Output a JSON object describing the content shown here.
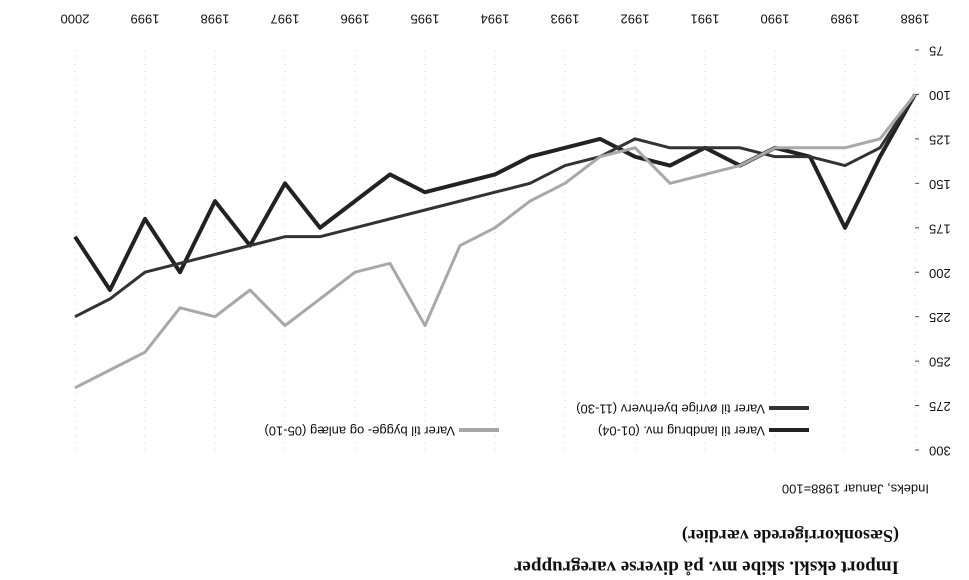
{
  "chart_data": {
    "type": "line",
    "title": "Import ekskl. skibe mv. på diverse varegrupper",
    "subtitle": "(Sæsonkorrigerede værdier)",
    "y_label": "Indeks, Januar 1988=100",
    "x": [
      1988,
      1988.5,
      1989,
      1989.5,
      1990,
      1990.5,
      1991,
      1991.5,
      1992,
      1992.5,
      1993,
      1993.5,
      1994,
      1994.5,
      1995,
      1995.5,
      1996,
      1996.5,
      1997,
      1997.5,
      1998,
      1998.5,
      1999,
      1999.5,
      2000
    ],
    "series": [
      {
        "name": "Varer til landbrug mv. (01-04)",
        "color": "#222222",
        "values": [
          100,
          135,
          175,
          135,
          130,
          140,
          130,
          140,
          135,
          125,
          130,
          135,
          145,
          150,
          155,
          145,
          160,
          175,
          150,
          185,
          160,
          200,
          170,
          210,
          180
        ]
      },
      {
        "name": "Varer til øvrige byerhverv (11-30)",
        "color": "#333333",
        "values": [
          100,
          130,
          140,
          135,
          135,
          130,
          130,
          130,
          125,
          135,
          140,
          150,
          155,
          160,
          165,
          170,
          175,
          180,
          180,
          185,
          190,
          195,
          200,
          215,
          225
        ]
      },
      {
        "name": "Varer til bygge- og anlæg (05-10)",
        "color": "#a8a8a8",
        "values": [
          100,
          125,
          130,
          130,
          130,
          140,
          145,
          150,
          130,
          135,
          150,
          160,
          175,
          185,
          230,
          195,
          200,
          215,
          230,
          210,
          225,
          220,
          245,
          255,
          265
        ]
      }
    ],
    "xlim": [
      1988,
      2000
    ],
    "xticks": [
      1988,
      1989,
      1990,
      1991,
      1992,
      1993,
      1994,
      1995,
      1996,
      1997,
      1998,
      1999,
      2000
    ],
    "ylim": [
      75,
      300
    ],
    "yticks": [
      75,
      100,
      125,
      150,
      175,
      200,
      225,
      250,
      275,
      300
    ]
  }
}
